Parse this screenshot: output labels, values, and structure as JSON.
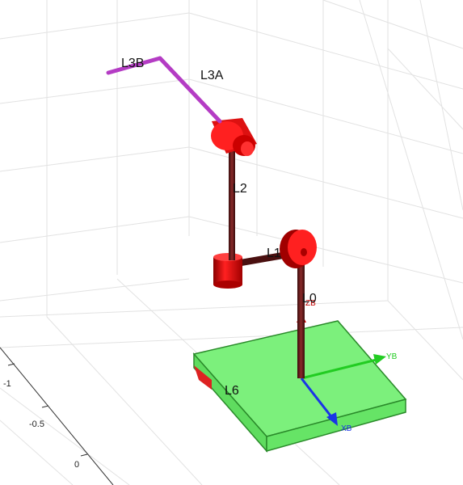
{
  "link_labels": {
    "l3b": "L3B",
    "l3a": "L3A",
    "l2": "L2",
    "l1": "L1",
    "l0": "L0",
    "l6": "L6"
  },
  "frame_axes": {
    "yb": "YB",
    "xb": "XB",
    "zb": "ZB"
  },
  "tick_labels": [
    "-1",
    "-0.5",
    "0"
  ],
  "colors": {
    "grid": "#e2e2e2",
    "joint_red": "#dd1111",
    "link_dark": "#5a1a1a",
    "link_magenta": "#b43cc4",
    "base_green": "#7cf07c",
    "axis_red": "#cc0000",
    "axis_green": "#22cc22",
    "axis_blue": "#1a35e6"
  }
}
